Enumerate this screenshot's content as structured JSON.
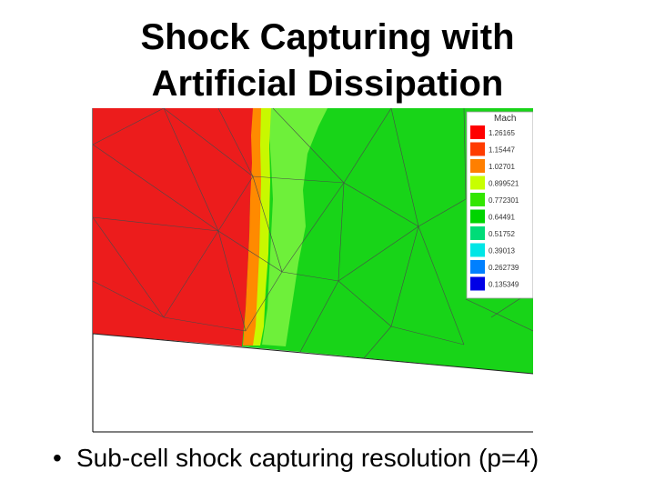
{
  "slide": {
    "title_line1": "Shock Capturing with",
    "title_line2": "Artificial Dissipation",
    "bullet_symbol": "•",
    "bullet_text": "Sub-cell shock capturing resolution (p=4)"
  },
  "legend": {
    "title": "Mach",
    "entries": [
      {
        "label": "1.26165",
        "color": "#ff0000"
      },
      {
        "label": "1.15447",
        "color": "#ff3c00"
      },
      {
        "label": "1.02701",
        "color": "#ff7f00"
      },
      {
        "label": "0.899521",
        "color": "#c8ff00"
      },
      {
        "label": "0.772301",
        "color": "#33e600"
      },
      {
        "label": "0.64491",
        "color": "#00d400"
      },
      {
        "label": "0.51752",
        "color": "#00dc78"
      },
      {
        "label": "0.39013",
        "color": "#00e6e6"
      },
      {
        "label": "0.262739",
        "color": "#0080ff"
      },
      {
        "label": "0.135349",
        "color": "#0000e6"
      }
    ]
  },
  "colors": {
    "red_region": "#ec1c1c",
    "green_region": "#18d418",
    "mesh_line": "#4a4a4a"
  }
}
